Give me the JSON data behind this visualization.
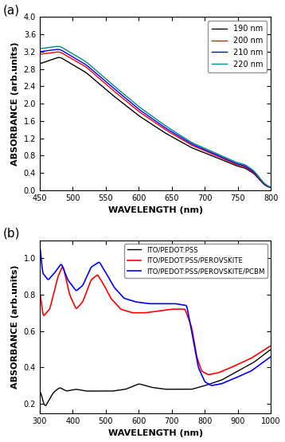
{
  "panel_a": {
    "title": "(a)",
    "xlabel": "WAVELENGTH (nm)",
    "ylabel": "ABSORBANCE (arb.units)",
    "xlim": [
      450,
      800
    ],
    "ylim": [
      0.0,
      4.0
    ],
    "yticks": [
      0.0,
      0.4,
      0.8,
      1.2,
      1.6,
      2.0,
      2.4,
      2.8,
      3.2,
      3.6,
      4.0
    ],
    "xticks": [
      450,
      500,
      550,
      600,
      650,
      700,
      750,
      800
    ],
    "legend_labels": [
      "190 nm",
      "200 nm",
      "210 nm",
      "220 nm"
    ],
    "line_colors": [
      "#000000",
      "#ff0000",
      "#0000ff",
      "#008B8B"
    ],
    "curves": [
      {
        "y450": 2.92,
        "y480": 3.08,
        "y520": 2.72,
        "y560": 2.2,
        "y600": 1.72,
        "y640": 1.32,
        "y680": 0.98,
        "y720": 0.74,
        "y750": 0.55,
        "y760": 0.52,
        "y775": 0.38,
        "y790": 0.12,
        "y800": 0.05
      },
      {
        "y450": 3.14,
        "y480": 3.2,
        "y520": 2.85,
        "y560": 2.32,
        "y600": 1.82,
        "y640": 1.4,
        "y680": 1.04,
        "y720": 0.78,
        "y750": 0.58,
        "y760": 0.55,
        "y775": 0.4,
        "y790": 0.13,
        "y800": 0.05
      },
      {
        "y450": 3.2,
        "y480": 3.26,
        "y520": 2.9,
        "y560": 2.38,
        "y600": 1.87,
        "y640": 1.44,
        "y680": 1.07,
        "y720": 0.8,
        "y750": 0.6,
        "y760": 0.57,
        "y775": 0.42,
        "y790": 0.14,
        "y800": 0.05
      },
      {
        "y450": 3.27,
        "y480": 3.33,
        "y520": 2.97,
        "y560": 2.44,
        "y600": 1.93,
        "y640": 1.49,
        "y680": 1.1,
        "y720": 0.83,
        "y750": 0.63,
        "y760": 0.6,
        "y775": 0.44,
        "y790": 0.15,
        "y800": 0.06
      }
    ]
  },
  "panel_b": {
    "title": "(b)",
    "xlabel": "WAVELENGTH (nm)",
    "ylabel": "ABSORBANCE (arb.units)",
    "xlim": [
      300,
      1000
    ],
    "xticks": [
      300,
      400,
      500,
      600,
      700,
      800,
      900,
      1000
    ],
    "legend_labels": [
      "ITO/PEDOT:PSS",
      "ITO/PEDOT:PSS/PEROVSKITE",
      "ITO/PEDOT:PSS/PEROVSKITE/PCBM"
    ],
    "line_colors": [
      "#000000",
      "#ff0000",
      "#0000ff"
    ],
    "curve_black_x": [
      300,
      315,
      340,
      360,
      380,
      410,
      440,
      480,
      520,
      560,
      600,
      640,
      680,
      720,
      760,
      800,
      850,
      900,
      950,
      1000
    ],
    "curve_black_y": [
      0.28,
      0.18,
      0.26,
      0.29,
      0.27,
      0.28,
      0.27,
      0.27,
      0.27,
      0.28,
      0.31,
      0.29,
      0.28,
      0.28,
      0.28,
      0.3,
      0.33,
      0.38,
      0.43,
      0.5
    ],
    "curve_red_x": [
      300,
      310,
      330,
      355,
      370,
      390,
      410,
      430,
      455,
      475,
      495,
      515,
      545,
      580,
      620,
      660,
      700,
      740,
      760,
      775,
      790,
      810,
      840,
      880,
      940,
      1000
    ],
    "curve_red_y": [
      0.82,
      0.68,
      0.72,
      0.9,
      0.96,
      0.8,
      0.72,
      0.76,
      0.88,
      0.91,
      0.85,
      0.78,
      0.72,
      0.7,
      0.7,
      0.71,
      0.72,
      0.72,
      0.62,
      0.46,
      0.38,
      0.36,
      0.37,
      0.4,
      0.45,
      0.52
    ],
    "curve_blue_x": [
      300,
      308,
      325,
      345,
      365,
      385,
      410,
      430,
      455,
      480,
      500,
      525,
      555,
      590,
      630,
      670,
      710,
      745,
      765,
      780,
      800,
      820,
      850,
      890,
      940,
      1000
    ],
    "curve_blue_y": [
      1.08,
      0.92,
      0.88,
      0.92,
      0.97,
      0.88,
      0.82,
      0.85,
      0.95,
      0.98,
      0.92,
      0.84,
      0.78,
      0.76,
      0.75,
      0.75,
      0.75,
      0.74,
      0.55,
      0.4,
      0.32,
      0.3,
      0.31,
      0.34,
      0.38,
      0.46
    ]
  }
}
